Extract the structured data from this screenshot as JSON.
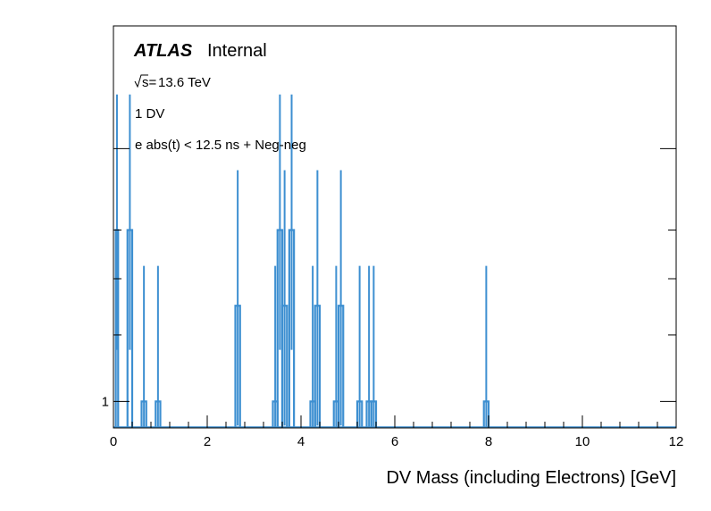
{
  "chart_data": {
    "type": "histogram",
    "xlabel": "DV Mass (including Electrons) [GeV]",
    "ylabel": "",
    "xlim": [
      0,
      12
    ],
    "log_y": true,
    "ylim": [
      0.93,
      2.8
    ],
    "x_ticks": [
      0,
      2,
      4,
      6,
      8,
      10,
      12
    ],
    "y_ticks": [
      {
        "value": 1,
        "label": "1"
      },
      {
        "value": 2,
        "label": ""
      }
    ],
    "atlas_label": "ATLAS",
    "atlas_status": "Internal",
    "sqrt_s": "13.6 TeV",
    "annotations": [
      "1 DV",
      "e abs(t) < 12.5 ns + Neg-neg"
    ],
    "series": [
      {
        "name": "Neg-neg",
        "color": "#3d8fd1",
        "bins": [
          {
            "x0": 0.05,
            "x1": 0.1,
            "value": 1.6
          },
          {
            "x0": 0.3,
            "x1": 0.4,
            "value": 1.6
          },
          {
            "x0": 0.6,
            "x1": 0.7,
            "value": 1.0
          },
          {
            "x0": 0.9,
            "x1": 1.0,
            "value": 1.0
          },
          {
            "x0": 2.6,
            "x1": 2.7,
            "value": 1.3
          },
          {
            "x0": 3.4,
            "x1": 3.5,
            "value": 1.0
          },
          {
            "x0": 3.5,
            "x1": 3.6,
            "value": 1.6
          },
          {
            "x0": 3.6,
            "x1": 3.7,
            "value": 1.3
          },
          {
            "x0": 3.75,
            "x1": 3.85,
            "value": 1.6
          },
          {
            "x0": 4.2,
            "x1": 4.3,
            "value": 1.0
          },
          {
            "x0": 4.3,
            "x1": 4.4,
            "value": 1.3
          },
          {
            "x0": 4.7,
            "x1": 4.8,
            "value": 1.0
          },
          {
            "x0": 4.8,
            "x1": 4.9,
            "value": 1.3
          },
          {
            "x0": 5.2,
            "x1": 5.3,
            "value": 1.0
          },
          {
            "x0": 5.4,
            "x1": 5.5,
            "value": 1.0
          },
          {
            "x0": 5.5,
            "x1": 5.6,
            "value": 1.0
          },
          {
            "x0": 7.9,
            "x1": 8.0,
            "value": 1.0
          }
        ]
      }
    ]
  }
}
